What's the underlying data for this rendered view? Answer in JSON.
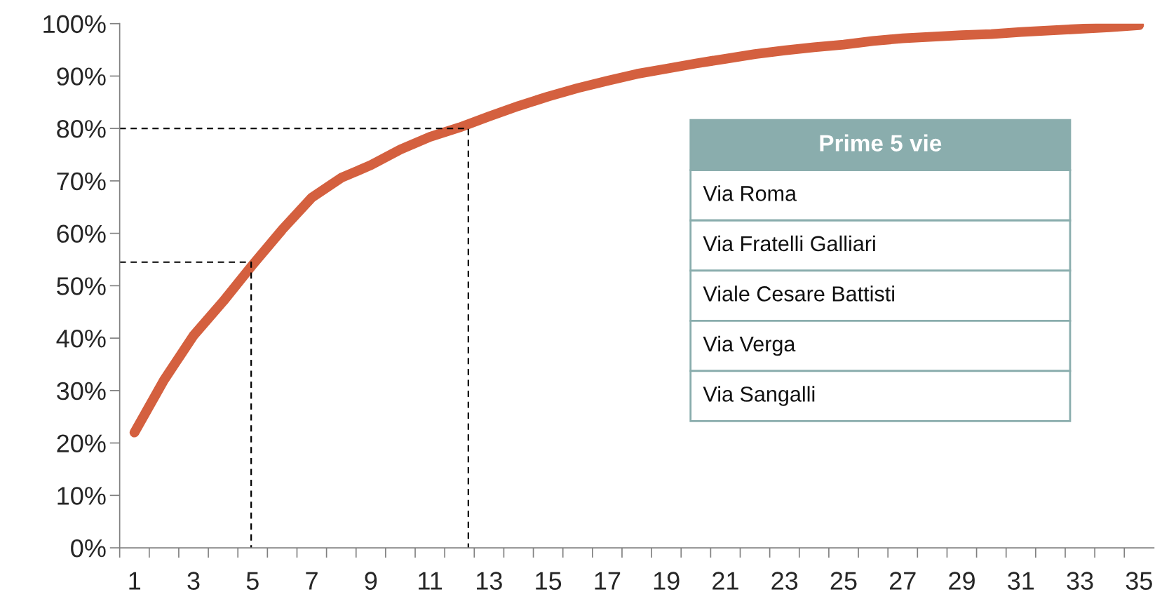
{
  "chart_data": {
    "type": "line",
    "x": [
      1,
      2,
      3,
      4,
      5,
      6,
      7,
      8,
      9,
      10,
      11,
      12,
      13,
      14,
      15,
      16,
      17,
      18,
      19,
      20,
      21,
      22,
      23,
      24,
      25,
      26,
      27,
      28,
      29,
      30,
      31,
      32,
      33,
      34,
      35
    ],
    "series": [
      {
        "color": "#d4603f",
        "line_style": "solid",
        "values": [
          22,
          32,
          40.5,
          47,
          54,
          60.7,
          66.8,
          70.6,
          73,
          76,
          78.4,
          80.2,
          82.3,
          84.3,
          86.1,
          87.7,
          89.1,
          90.4,
          91.4,
          92.4,
          93.3,
          94.2,
          94.9,
          95.5,
          96,
          96.7,
          97.2,
          97.5,
          97.8,
          98,
          98.4,
          98.7,
          99,
          99.3,
          99.7
        ]
      },
      {
        "type": "line",
        "color": "#000000",
        "line_style": "dashed",
        "x": [
          0.5,
          4.95,
          4.95
        ],
        "values": [
          54.5,
          54.5,
          0
        ]
      },
      {
        "type": "line",
        "color": "#000000",
        "line_style": "dashed",
        "x": [
          0.5,
          12.3,
          12.3
        ],
        "values": [
          80,
          80,
          0
        ]
      }
    ],
    "xlim": [
      0.5,
      35.5
    ],
    "xticks": [
      1,
      3,
      5,
      7,
      9,
      11,
      13,
      15,
      17,
      19,
      21,
      23,
      25,
      27,
      29,
      31,
      33,
      35,
      {
        "value": 0.5,
        "label": null
      },
      {
        "value": 1.5,
        "label": null
      },
      {
        "value": 2.5,
        "label": null
      },
      {
        "value": 3.5,
        "label": null
      },
      {
        "value": 4.5,
        "label": null
      },
      {
        "value": 5.5,
        "label": null
      },
      {
        "value": 6.5,
        "label": null
      },
      {
        "value": 7.5,
        "label": null
      },
      {
        "value": 8.5,
        "label": null
      },
      {
        "value": 9.5,
        "label": null
      },
      {
        "value": 10.5,
        "label": null
      },
      {
        "value": 11.5,
        "label": null
      },
      {
        "value": 12.5,
        "label": null
      },
      {
        "value": 13.5,
        "label": null
      },
      {
        "value": 14.5,
        "label": null
      },
      {
        "value": 15.5,
        "label": null
      },
      {
        "value": 16.5,
        "label": null
      },
      {
        "value": 17.5,
        "label": null
      },
      {
        "value": 18.5,
        "label": null
      },
      {
        "value": 19.5,
        "label": null
      },
      {
        "value": 20.5,
        "label": null
      },
      {
        "value": 21.5,
        "label": null
      },
      {
        "value": 22.5,
        "label": null
      },
      {
        "value": 23.5,
        "label": null
      },
      {
        "value": 24.5,
        "label": null
      },
      {
        "value": 25.5,
        "label": null
      },
      {
        "value": 26.5,
        "label": null
      },
      {
        "value": 27.5,
        "label": null
      },
      {
        "value": 28.5,
        "label": null
      },
      {
        "value": 29.5,
        "label": null
      },
      {
        "value": 30.5,
        "label": null
      },
      {
        "value": 31.5,
        "label": null
      },
      {
        "value": 32.5,
        "label": null
      },
      {
        "value": 33.5,
        "label": null
      },
      {
        "value": 34.5,
        "label": null
      }
    ],
    "ylim": [
      0,
      100
    ],
    "yticks": [
      {
        "value": 0,
        "label": "0%"
      },
      {
        "value": 10,
        "label": "10%"
      },
      {
        "value": 20,
        "label": "20%"
      },
      {
        "value": 30,
        "label": "30%"
      },
      {
        "value": 40,
        "label": "40%"
      },
      {
        "value": 50,
        "label": "50%"
      },
      {
        "value": 60,
        "label": "60%"
      },
      {
        "value": 70,
        "label": "70%"
      },
      {
        "value": 80,
        "label": "80%"
      },
      {
        "value": 90,
        "label": "90%"
      },
      {
        "value": 100,
        "label": "100%"
      }
    ],
    "annotations": [
      "Prime 5 vie",
      "Via Roma",
      "Via Fratelli Galliari",
      "Viale Cesare Battisti",
      "Via Verga",
      "Via Sangalli"
    ],
    "grid": false,
    "legend": false,
    "marker": "none"
  }
}
